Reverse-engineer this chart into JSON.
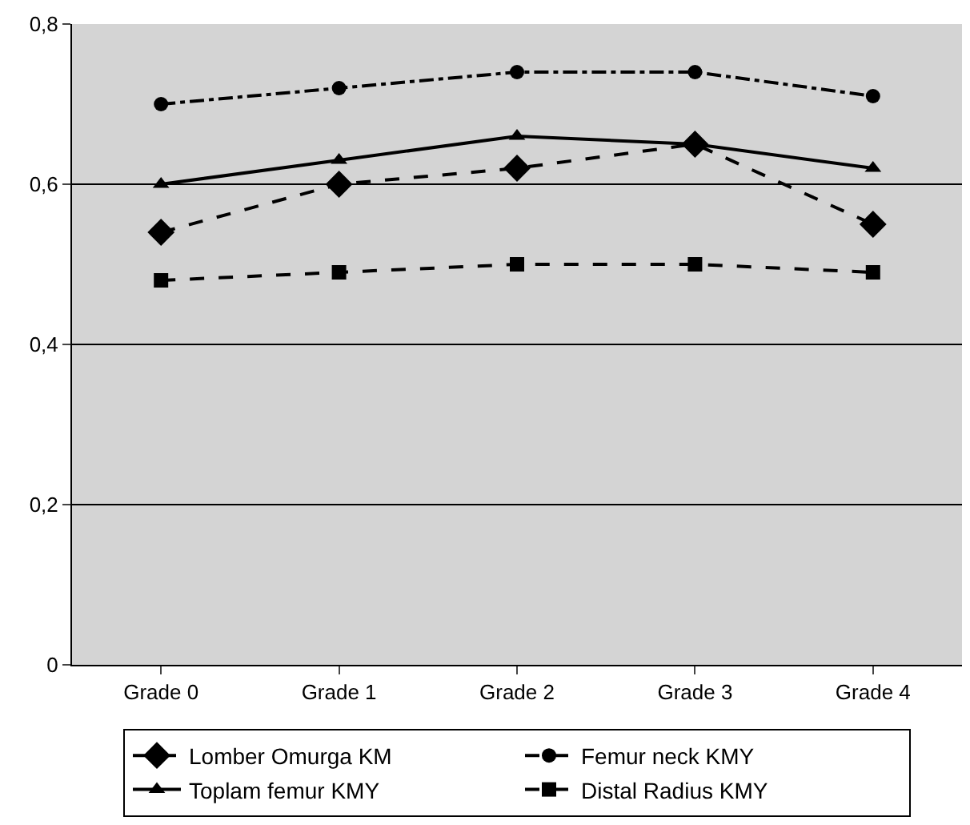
{
  "chart_data": {
    "type": "line",
    "categories": [
      "Grade 0",
      "Grade 1",
      "Grade 2",
      "Grade 3",
      "Grade 4"
    ],
    "series": [
      {
        "name": "Lomber Omurga KM",
        "color": "#000000",
        "marker": "diamond",
        "line_style": "dashed",
        "values": [
          0.54,
          0.6,
          0.62,
          0.65,
          0.55
        ]
      },
      {
        "name": "Femur neck KMY",
        "color": "#000000",
        "marker": "circle",
        "line_style": "dashdot",
        "values": [
          0.7,
          0.72,
          0.74,
          0.74,
          0.71
        ]
      },
      {
        "name": "Toplam femur KMY",
        "color": "#000000",
        "marker": "triangle",
        "line_style": "solid",
        "values": [
          0.6,
          0.63,
          0.66,
          0.65,
          0.62
        ]
      },
      {
        "name": "Distal Radius KMY",
        "color": "#000000",
        "marker": "square",
        "line_style": "dashed",
        "values": [
          0.48,
          0.49,
          0.5,
          0.5,
          0.49
        ]
      }
    ],
    "ylim": [
      0,
      0.8
    ],
    "yticks": [
      0,
      {
        "value": 0.2,
        "label": "0,2"
      },
      {
        "value": 0.4,
        "label": "0,4"
      },
      {
        "value": 0.6,
        "label": "0,6"
      },
      {
        "value": 0.8,
        "label": "0,8"
      }
    ],
    "grid": "y",
    "legend": "bottom"
  }
}
